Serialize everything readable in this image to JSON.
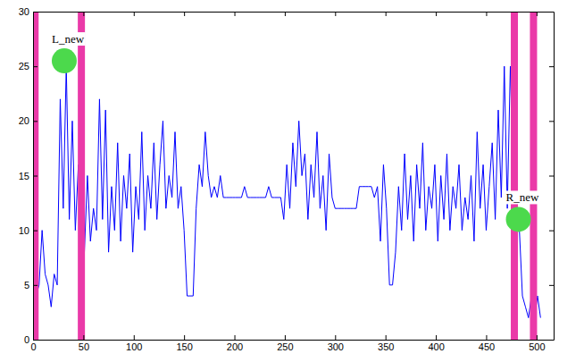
{
  "chart_data": {
    "type": "line",
    "x": [
      0,
      3,
      6,
      9,
      12,
      15,
      18,
      21,
      24,
      27,
      30,
      33,
      36,
      39,
      42,
      45,
      48,
      51,
      54,
      57,
      60,
      63,
      66,
      69,
      72,
      75,
      78,
      81,
      84,
      87,
      90,
      93,
      96,
      99,
      102,
      105,
      108,
      111,
      114,
      117,
      120,
      123,
      126,
      129,
      132,
      135,
      138,
      141,
      144,
      147,
      150,
      153,
      156,
      159,
      162,
      165,
      168,
      171,
      174,
      177,
      180,
      183,
      186,
      189,
      192,
      195,
      198,
      201,
      204,
      207,
      210,
      213,
      216,
      219,
      222,
      225,
      228,
      231,
      234,
      237,
      240,
      243,
      246,
      249,
      252,
      255,
      258,
      261,
      264,
      267,
      270,
      273,
      276,
      279,
      282,
      285,
      288,
      291,
      294,
      297,
      300,
      303,
      306,
      309,
      312,
      315,
      318,
      321,
      324,
      327,
      330,
      333,
      336,
      339,
      342,
      345,
      348,
      351,
      354,
      357,
      360,
      363,
      366,
      369,
      372,
      375,
      378,
      381,
      384,
      387,
      390,
      393,
      396,
      399,
      402,
      405,
      408,
      411,
      414,
      417,
      420,
      423,
      426,
      429,
      432,
      435,
      438,
      441,
      444,
      447,
      450,
      453,
      456,
      459,
      462,
      465,
      468,
      471,
      474,
      477,
      480,
      483,
      486,
      489,
      492,
      495,
      498,
      501,
      504
    ],
    "series": [
      {
        "color": "#0000ff",
        "values": [
          5,
          4,
          5,
          10,
          6,
          5,
          3,
          6,
          5,
          22,
          12,
          25,
          11,
          20,
          10,
          16,
          12,
          8,
          15,
          9,
          12,
          10,
          22,
          11,
          21,
          8,
          14,
          10,
          18,
          9,
          15,
          12,
          17,
          8,
          14,
          11,
          19,
          10,
          15,
          12,
          18,
          11,
          16,
          20,
          12,
          15,
          13,
          19,
          12,
          14,
          10,
          4,
          4,
          4,
          12,
          16,
          14,
          19,
          15,
          13,
          14,
          13,
          15,
          13,
          13,
          13,
          13,
          13,
          13,
          13,
          14,
          13,
          13,
          13,
          13,
          13,
          13,
          13,
          14,
          13,
          13,
          13,
          13,
          11,
          16,
          12,
          18,
          14,
          20,
          15,
          17,
          11,
          16,
          13,
          19,
          12,
          15,
          10,
          17,
          13,
          12,
          12,
          12,
          12,
          12,
          12,
          12,
          12,
          14,
          14,
          14,
          14,
          14,
          13,
          14,
          9,
          16,
          12,
          5,
          5,
          8,
          14,
          10,
          17,
          11,
          15,
          9,
          16,
          12,
          18,
          10,
          14,
          12,
          16,
          9,
          15,
          11,
          17,
          10,
          14,
          12,
          16,
          10,
          13,
          11,
          15,
          9,
          19,
          12,
          16,
          10,
          14,
          18,
          11,
          21,
          13,
          25,
          12,
          25,
          15,
          11,
          10,
          4,
          3,
          2,
          4,
          2,
          4,
          2
        ]
      }
    ],
    "xlim": [
      0,
      517
    ],
    "xticks": [
      0,
      50,
      100,
      150,
      200,
      250,
      300,
      350,
      400,
      450,
      500
    ],
    "ylim": [
      0,
      30
    ],
    "yticks": [
      0,
      5,
      10,
      15,
      20,
      25,
      30
    ],
    "grid": false,
    "vlines": {
      "x": [
        2,
        48,
        478,
        497
      ],
      "color": "#ea3aa8"
    },
    "annotations": [
      {
        "text": "L_new",
        "x": 31,
        "y": 25.5,
        "color": "#4cd94c"
      },
      {
        "text": "R_new",
        "x": 482,
        "y": 11,
        "color": "#4cd94c"
      }
    ]
  }
}
